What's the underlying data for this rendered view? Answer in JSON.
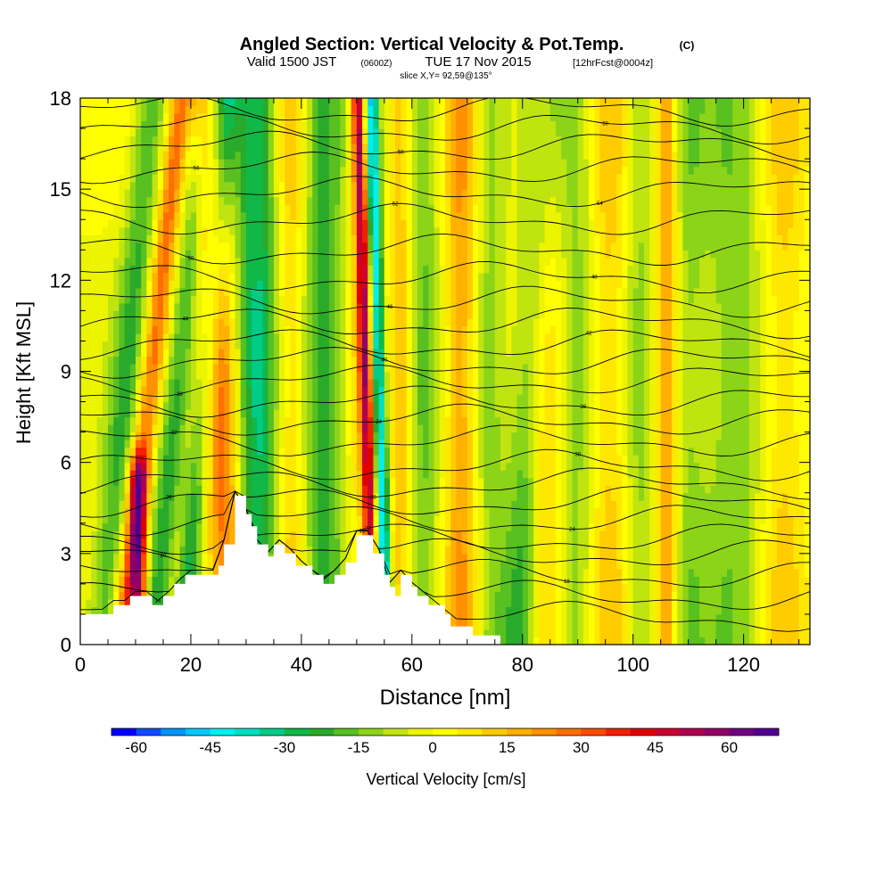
{
  "header": {
    "title": "Angled Section: Vertical Velocity & Pot.Temp.",
    "title_units": "(C)",
    "valid_prefix": "Valid 1500 JST",
    "valid_zone": "(0600Z)",
    "valid_date": "TUE 17 Nov 2015",
    "forecast": "[12hrFcst@0004z]",
    "slice": "slice X,Y= 92,59@135°"
  },
  "chart_data": {
    "type": "heatmap",
    "xlabel": "Distance [nm]",
    "ylabel": "Height [Kft MSL]",
    "xlim": [
      0,
      132
    ],
    "ylim": [
      0,
      18
    ],
    "x_ticks": [
      0,
      20,
      40,
      60,
      80,
      100,
      120
    ],
    "y_ticks": [
      0,
      3,
      6,
      9,
      12,
      15,
      18
    ],
    "colorbar": {
      "label": "Vertical Velocity [cm/s]",
      "min": -65,
      "max": 70,
      "tick_values": [
        -60,
        -45,
        -30,
        -15,
        0,
        15,
        30,
        45,
        60
      ],
      "tick_labels": [
        "-60",
        "-45",
        "-30",
        "-15",
        "0",
        "15",
        "30",
        "45",
        "60"
      ],
      "colors": [
        "#0000ff",
        "#0f4cff",
        "#0094ff",
        "#00c8ff",
        "#00f0f0",
        "#00e0c0",
        "#00cc88",
        "#10b848",
        "#2aaa2a",
        "#58c020",
        "#8cd418",
        "#c0e410",
        "#ecf400",
        "#ffff00",
        "#ffe800",
        "#ffcc00",
        "#ffb000",
        "#ff9000",
        "#ff6e00",
        "#ff4c00",
        "#f02000",
        "#e00000",
        "#cc0030",
        "#b00050",
        "#900068",
        "#700080",
        "#500090"
      ]
    },
    "terrain_profile": [
      [
        0,
        1.0
      ],
      [
        6,
        1.0
      ],
      [
        6,
        1.3
      ],
      [
        9,
        1.3
      ],
      [
        9,
        1.6
      ],
      [
        13,
        1.6
      ],
      [
        13,
        1.3
      ],
      [
        15,
        1.3
      ],
      [
        15,
        1.6
      ],
      [
        17,
        1.6
      ],
      [
        17,
        2.0
      ],
      [
        19,
        2.0
      ],
      [
        19,
        2.3
      ],
      [
        25,
        2.3
      ],
      [
        25,
        2.6
      ],
      [
        26,
        2.6
      ],
      [
        26,
        3.3
      ],
      [
        28,
        3.3
      ],
      [
        28,
        4.9
      ],
      [
        30,
        4.9
      ],
      [
        30,
        4.3
      ],
      [
        31,
        4.3
      ],
      [
        31,
        3.9
      ],
      [
        32,
        3.9
      ],
      [
        32,
        3.3
      ],
      [
        34,
        3.3
      ],
      [
        34,
        2.9
      ],
      [
        35,
        2.9
      ],
      [
        35,
        3.3
      ],
      [
        37,
        3.3
      ],
      [
        37,
        3.0
      ],
      [
        39,
        3.0
      ],
      [
        39,
        2.6
      ],
      [
        42,
        2.6
      ],
      [
        42,
        2.3
      ],
      [
        44,
        2.3
      ],
      [
        44,
        2.0
      ],
      [
        46,
        2.0
      ],
      [
        46,
        2.3
      ],
      [
        48,
        2.3
      ],
      [
        48,
        2.7
      ],
      [
        50,
        2.7
      ],
      [
        50,
        3.6
      ],
      [
        53,
        3.6
      ],
      [
        53,
        3.0
      ],
      [
        55,
        3.0
      ],
      [
        55,
        2.3
      ],
      [
        56,
        2.3
      ],
      [
        56,
        1.9
      ],
      [
        57,
        1.9
      ],
      [
        57,
        1.6
      ],
      [
        58,
        1.6
      ],
      [
        58,
        2.3
      ],
      [
        60,
        2.3
      ],
      [
        60,
        1.9
      ],
      [
        61,
        1.9
      ],
      [
        61,
        1.6
      ],
      [
        63,
        1.6
      ],
      [
        63,
        1.3
      ],
      [
        66,
        1.3
      ],
      [
        66,
        1.0
      ],
      [
        67,
        1.0
      ],
      [
        67,
        0.6
      ],
      [
        71,
        0.6
      ],
      [
        71,
        0.3
      ],
      [
        76,
        0.3
      ],
      [
        76,
        0.0
      ],
      [
        132,
        0.0
      ]
    ],
    "bands": [
      {
        "x": 4,
        "w": 3,
        "v": -20,
        "tilt": 0.5
      },
      {
        "x": 7.5,
        "w": 2.2,
        "v": 30,
        "tilt": 0.6
      },
      {
        "x": 10.5,
        "w": 1.6,
        "v": 45,
        "z0": 0,
        "z1": 5.5
      },
      {
        "x": 13,
        "w": 3,
        "v": -25,
        "tilt": 0.6
      },
      {
        "x": 16,
        "w": 2,
        "v": 12,
        "tilt": 0.5
      },
      {
        "x": 19,
        "w": 2.5,
        "v": -30,
        "tilt": 0.4
      },
      {
        "x": 22,
        "w": 2,
        "v": 10
      },
      {
        "x": 27,
        "w": 3,
        "v": 30,
        "tilt": -0.2
      },
      {
        "x": 32,
        "w": 4,
        "v": -30
      },
      {
        "x": 38,
        "w": 3,
        "v": 15
      },
      {
        "x": 44,
        "w": 4,
        "v": -22
      },
      {
        "x": 50,
        "w": 2,
        "v": 8
      },
      {
        "x": 53,
        "w": 1.2,
        "v": 50,
        "tilt": -0.15
      },
      {
        "x": 55.3,
        "w": 1.3,
        "v": -45,
        "tilt": -0.15
      },
      {
        "x": 58,
        "w": 2,
        "v": 15
      },
      {
        "x": 62,
        "w": 3,
        "v": -15
      },
      {
        "x": 69,
        "w": 3,
        "v": 20
      },
      {
        "x": 74,
        "w": 3,
        "v": -12
      },
      {
        "x": 79,
        "w": 3.5,
        "v": -20,
        "tilt": 0.3
      },
      {
        "x": 84,
        "w": 3,
        "v": 15
      },
      {
        "x": 90,
        "w": 3,
        "v": -12
      },
      {
        "x": 96,
        "w": 4,
        "v": 12
      },
      {
        "x": 101,
        "w": 3,
        "v": -12
      },
      {
        "x": 106,
        "w": 2,
        "v": 22
      },
      {
        "x": 110,
        "w": 3,
        "v": -10
      },
      {
        "x": 118,
        "w": 6,
        "v": -14
      },
      {
        "x": 127,
        "w": 4,
        "v": 12
      }
    ],
    "theta_contours": [
      {
        "level": 14,
        "z": 0.9
      },
      {
        "level": 16,
        "z": 1.6
      },
      {
        "level": 18,
        "z": 2.3
      },
      {
        "level": 20,
        "z": 3.0
      },
      {
        "level": 22,
        "z": 3.5
      },
      {
        "level": 24,
        "z": 4.1
      },
      {
        "level": 26,
        "z": 4.7
      },
      {
        "level": 28,
        "z": 5.3
      },
      {
        "level": 30,
        "z": 5.9
      },
      {
        "level": 32,
        "z": 6.7
      },
      {
        "level": 34,
        "z": 7.4
      },
      {
        "level": 36,
        "z": 8.0
      },
      {
        "level": 38,
        "z": 8.7
      },
      {
        "level": 40,
        "z": 9.3
      },
      {
        "level": 42,
        "z": 9.9
      },
      {
        "level": 44,
        "z": 10.6
      },
      {
        "level": 46,
        "z": 11.3
      },
      {
        "level": 48,
        "z": 12.1
      },
      {
        "level": 50,
        "z": 13.0
      },
      {
        "level": 52,
        "z": 14.0
      },
      {
        "level": 54,
        "z": 14.9
      },
      {
        "level": 56,
        "z": 15.7
      },
      {
        "level": 58,
        "z": 16.4
      },
      {
        "level": 60,
        "z": 17.0
      },
      {
        "level": 62,
        "z": 17.6
      }
    ]
  }
}
